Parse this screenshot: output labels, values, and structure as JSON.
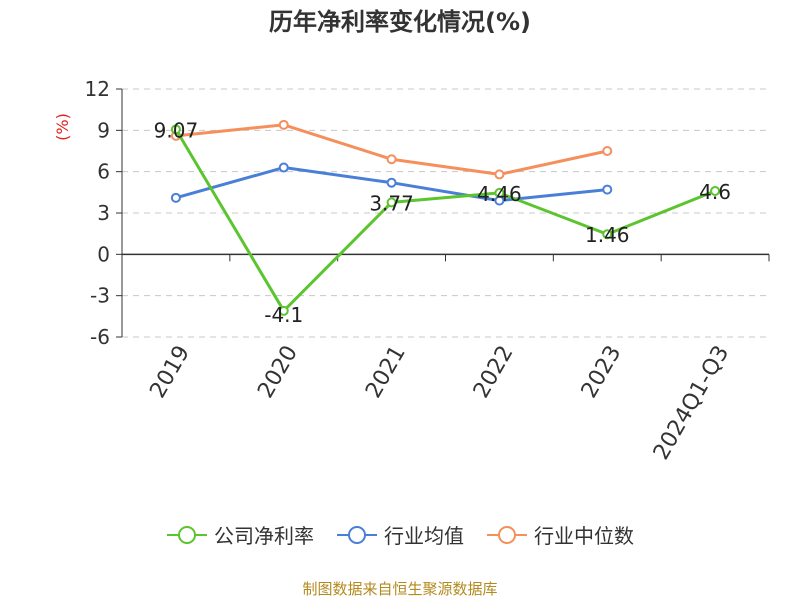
{
  "title": "历年净利率变化情况(%)",
  "source": "制图数据来自恒生聚源数据库",
  "colors": {
    "company": "#5cc42e",
    "avg": "#4a7fd8",
    "median": "#f58f5c"
  },
  "chart_data": {
    "type": "line",
    "title": "历年净利率变化情况(%)",
    "ylabel": "(%)",
    "xlabel": "",
    "categories": [
      "2019",
      "2020",
      "2021",
      "2022",
      "2023",
      "2024Q1-Q3"
    ],
    "ylim": [
      -6,
      12
    ],
    "yticks": [
      12,
      9,
      6,
      3,
      0,
      -3,
      -6
    ],
    "grid": true,
    "legend_position": "bottom",
    "series": [
      {
        "name": "公司净利率",
        "values": [
          9.07,
          -4.1,
          3.77,
          4.46,
          1.46,
          4.6
        ],
        "labels": [
          "9.07",
          "-4.1",
          "3.77",
          "4.46",
          "1.46",
          "4.6"
        ]
      },
      {
        "name": "行业均值",
        "values": [
          4.1,
          6.3,
          5.2,
          3.9,
          4.7,
          null
        ]
      },
      {
        "name": "行业中位数",
        "values": [
          8.6,
          9.4,
          6.9,
          5.8,
          7.5,
          null
        ]
      }
    ]
  }
}
